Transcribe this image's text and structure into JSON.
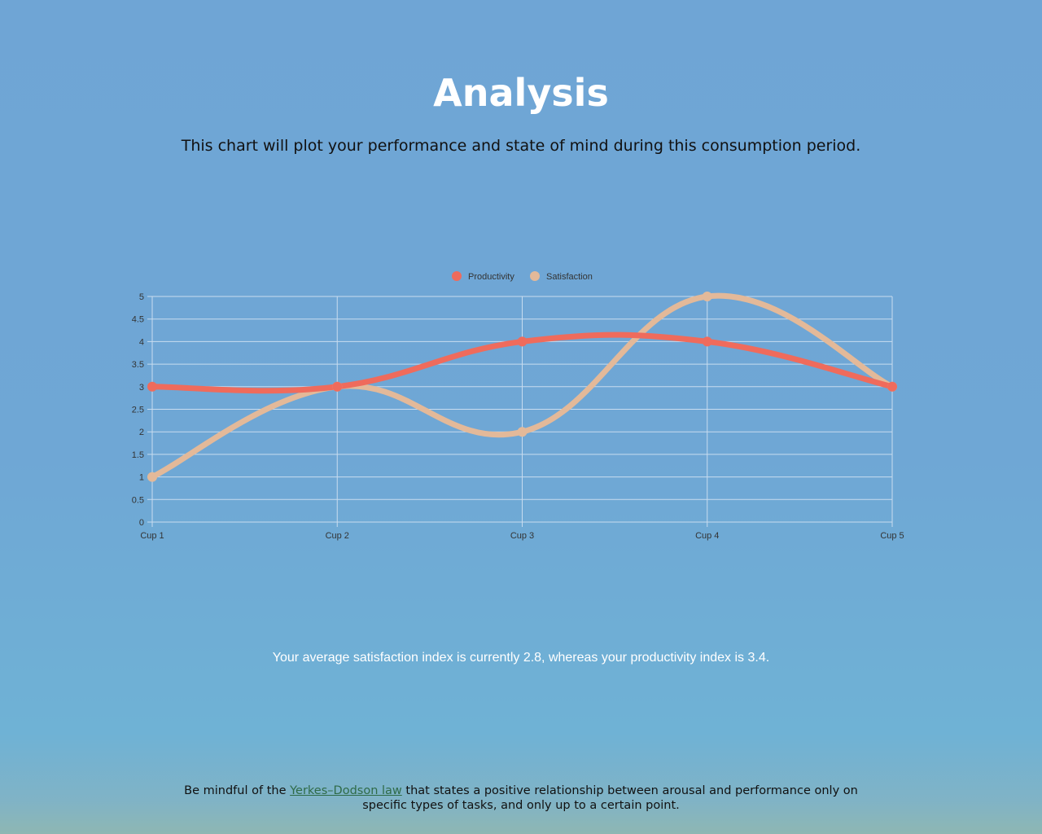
{
  "page": {
    "title": "Analysis",
    "subtitle": "This chart will plot your performance and state of mind during this consumption period."
  },
  "chart_data": {
    "type": "line",
    "categories": [
      "Cup 1",
      "Cup 2",
      "Cup 3",
      "Cup 4",
      "Cup 5"
    ],
    "series": [
      {
        "name": "Productivity",
        "values": [
          3,
          3,
          4,
          4,
          3
        ],
        "color": "#ef6b5c"
      },
      {
        "name": "Satisfaction",
        "values": [
          1,
          3,
          2,
          5,
          3
        ],
        "color": "#e3b999"
      }
    ],
    "ylim": [
      0,
      5
    ],
    "yticks": [
      "0",
      "0.5",
      "1",
      "1.5",
      "2",
      "2.5",
      "3",
      "3.5",
      "4",
      "4.5",
      "5"
    ],
    "grid": true,
    "legend_position": "top-center",
    "smooth": true
  },
  "summary": {
    "text": "Your average satisfaction index is currently 2.8, whereas your productivity index is 3.4."
  },
  "footer": {
    "prefix": "Be mindful of the ",
    "link_text": "Yerkes–Dodson law",
    "suffix": " that states a positive relationship between arousal and performance only on specific types of tasks, and only up to a certain point."
  },
  "colors": {
    "background_top": "#6fa5d5",
    "background_bottom": "#8eb7b3",
    "grid": "#c8dcef",
    "link": "#2f6b48"
  }
}
